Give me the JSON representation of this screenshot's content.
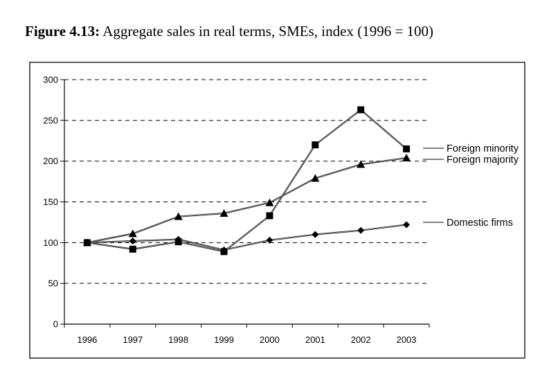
{
  "figure": {
    "label": "Figure 4.13:",
    "caption": "Aggregate sales in real terms, SMEs, index (1996 = 100)"
  },
  "chart_data": {
    "type": "line",
    "title": "Figure 4.13: Aggregate sales in real terms, SMEs, index (1996 = 100)",
    "xlabel": "",
    "ylabel": "",
    "categories": [
      "1996",
      "1997",
      "1998",
      "1999",
      "2000",
      "2001",
      "2002",
      "2003"
    ],
    "ylim": [
      0,
      300
    ],
    "yticks": [
      0,
      50,
      100,
      150,
      200,
      250,
      300
    ],
    "ytick_labels": [
      "0",
      "50",
      "100",
      "150",
      "200",
      "250",
      "300"
    ],
    "grid": "horizontal dashed",
    "legend_placement": "right (labels at series ends)",
    "series": [
      {
        "name": "Foreign minority",
        "marker": "square",
        "values": [
          100,
          92,
          101,
          89,
          133,
          220,
          263,
          215
        ]
      },
      {
        "name": "Foreign majority",
        "marker": "triangle",
        "values": [
          100,
          111,
          132,
          136,
          149,
          179,
          196,
          204
        ]
      },
      {
        "name": "Domestic firms",
        "marker": "diamond",
        "values": [
          100,
          102,
          104,
          91,
          103,
          110,
          115,
          122
        ]
      }
    ]
  }
}
